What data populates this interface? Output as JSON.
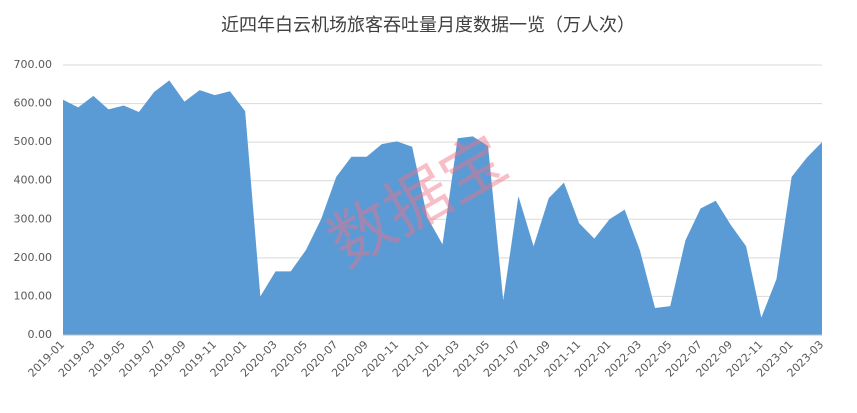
{
  "chart_data": {
    "type": "area",
    "title": "近四年白云机场旅客吞吐量月度数据一览（万人次）",
    "watermark": "数据宝",
    "categories": [
      "2019-01",
      null,
      "2019-03",
      null,
      "2019-05",
      null,
      "2019-07",
      null,
      "2019-09",
      null,
      "2019-11",
      null,
      "2020-01",
      null,
      "2020-03",
      null,
      "2020-05",
      null,
      "2020-07",
      null,
      "2020-09",
      null,
      "2020-11",
      null,
      "2021-01",
      null,
      "2021-03",
      null,
      "2021-05",
      null,
      "2021-07",
      null,
      "2021-09",
      null,
      "2021-11",
      null,
      "2022-01",
      null,
      "2022-03",
      null,
      "2022-05",
      null,
      "2022-07",
      null,
      "2022-09",
      null,
      "2022-11",
      null,
      "2023-01",
      null,
      "2023-03"
    ],
    "values": [
      610,
      590,
      620,
      585,
      595,
      578,
      630,
      660,
      605,
      635,
      622,
      632,
      580,
      100,
      165,
      165,
      220,
      300,
      410,
      462,
      462,
      495,
      502,
      488,
      305,
      235,
      510,
      515,
      490,
      90,
      360,
      230,
      355,
      395,
      290,
      250,
      300,
      325,
      220,
      70,
      75,
      245,
      328,
      348,
      285,
      230,
      45,
      145,
      410,
      460,
      500
    ],
    "color": "#5b9bd5",
    "ylim": [
      0,
      700
    ],
    "yticks": [
      {
        "value": 0,
        "label": "0.00"
      },
      {
        "value": 100,
        "label": "100.00"
      },
      {
        "value": 200,
        "label": "200.00"
      },
      {
        "value": 300,
        "label": "300.00"
      },
      {
        "value": 400,
        "label": "400.00"
      },
      {
        "value": 500,
        "label": "500.00"
      },
      {
        "value": 600,
        "label": "600.00"
      },
      {
        "value": 700,
        "label": "700.00"
      }
    ],
    "grid": true
  }
}
